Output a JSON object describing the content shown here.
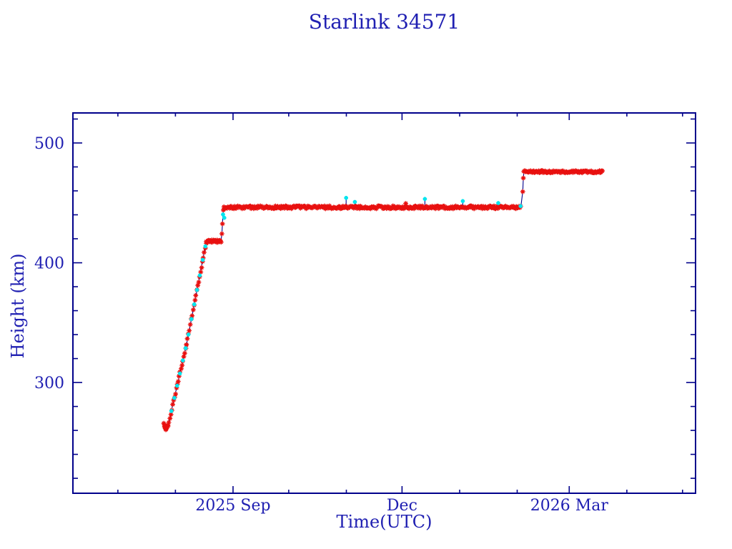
{
  "colors": {
    "background": "#ffffff",
    "frame": "#00008b",
    "text": "#2020b2",
    "track_line": "#00008b",
    "primary_marker": "#e8100f",
    "secondary_marker": "#00e5ee"
  },
  "chart_data": {
    "type": "scatter",
    "title": "Starlink 34571",
    "xlabel": "Time(UTC)",
    "ylabel": "Height (km)",
    "x_unit": "days since 2025-06-01",
    "xlim": [
      5.8,
      341.0
    ],
    "ylim": [
      207.5,
      525.1
    ],
    "grid": false,
    "legend": "none",
    "x_ticks_major": [
      {
        "day": 92,
        "label": "2025 Sep"
      },
      {
        "day": 183,
        "label": "Dec"
      },
      {
        "day": 273,
        "label": "2026 Mar"
      }
    ],
    "x_ticks_minor": [
      30,
      61,
      122,
      153,
      214,
      245,
      304,
      334
    ],
    "y_ticks_major": [
      {
        "km": 300,
        "label": "300"
      },
      {
        "km": 400,
        "label": "400"
      },
      {
        "km": 500,
        "label": "500"
      }
    ],
    "y_ticks_minor": [
      220,
      240,
      260,
      280,
      320,
      340,
      360,
      380,
      420,
      440,
      460,
      480,
      520
    ],
    "series": [
      {
        "name": "measured-height-track",
        "marker": "asterisk",
        "color": "#e8100f",
        "line_color": "#00008b",
        "path": [
          [
            54.7,
            265.5
          ],
          [
            55.6,
            261.0
          ],
          [
            56.3,
            261.5
          ],
          [
            57.0,
            264.0
          ],
          [
            67.0,
            332.0
          ],
          [
            77.5,
            417.0
          ],
          [
            77.6,
            418.0
          ],
          [
            85.5,
            418.0
          ],
          [
            86.0,
            424.2
          ],
          [
            86.3,
            432.5
          ],
          [
            86.6,
            440.3
          ],
          [
            87.0,
            446.3
          ],
          [
            246.9,
            446.3
          ],
          [
            248.0,
            459.4
          ],
          [
            248.3,
            470.7
          ],
          [
            248.6,
            476.0
          ],
          [
            290.8,
            476.0
          ]
        ],
        "dense_segments": [
          {
            "from": [
              54.7,
              265.5
            ],
            "to": [
              55.6,
              261.0
            ],
            "step": 0.18,
            "jitter": 0.9
          },
          {
            "from": [
              55.6,
              261.0
            ],
            "to": [
              57.0,
              264.0
            ],
            "step": 0.18,
            "jitter": 0.9
          },
          {
            "from": [
              57.0,
              264.0
            ],
            "to": [
              67.0,
              332.0
            ],
            "step": 0.5,
            "jitter": 0.9
          },
          {
            "from": [
              67.0,
              332.0
            ],
            "to": [
              77.5,
              417.0
            ],
            "step": 0.5,
            "jitter": 0.9
          },
          {
            "from": [
              77.6,
              418.0
            ],
            "to": [
              85.5,
              418.0
            ],
            "step": 0.3,
            "jitter": 1.0
          },
          {
            "from": [
              87.0,
              446.3
            ],
            "to": [
              246.9,
              446.3
            ],
            "step": 0.45,
            "jitter": 1.2
          },
          {
            "from": [
              248.6,
              476.0
            ],
            "to": [
              290.8,
              476.0
            ],
            "step": 0.4,
            "jitter": 0.9
          }
        ],
        "extra_points": [
          [
            86.0,
            424.2
          ],
          [
            86.3,
            432.5
          ],
          [
            86.8,
            444.0
          ],
          [
            185.0,
            449.5
          ],
          [
            248.0,
            459.4
          ],
          [
            248.3,
            470.7
          ]
        ]
      },
      {
        "name": "secondary-solution-points",
        "marker": "asterisk",
        "color": "#00e5ee",
        "points": [
          [
            58.8,
            276.2
          ],
          [
            60.4,
            287.1
          ],
          [
            61.9,
            297.3
          ],
          [
            63.4,
            307.5
          ],
          [
            65.0,
            318.4
          ],
          [
            66.5,
            328.6
          ],
          [
            68.0,
            340.1
          ],
          [
            69.6,
            353.0
          ],
          [
            71.1,
            365.2
          ],
          [
            72.6,
            377.3
          ],
          [
            74.1,
            389.4
          ],
          [
            75.7,
            402.4
          ],
          [
            77.1,
            413.7
          ],
          [
            86.6,
            440.3
          ],
          [
            87.3,
            437.5
          ],
          [
            246.8,
            447.3
          ]
        ],
        "outliers_with_stem": [
          {
            "day": 152.9,
            "km": 454.2
          },
          {
            "day": 157.6,
            "km": 450.8
          },
          {
            "day": 195.3,
            "km": 453.3
          },
          {
            "day": 215.7,
            "km": 451.5
          },
          {
            "day": 234.8,
            "km": 449.8
          }
        ],
        "stem_base_km": 446.3
      }
    ]
  }
}
